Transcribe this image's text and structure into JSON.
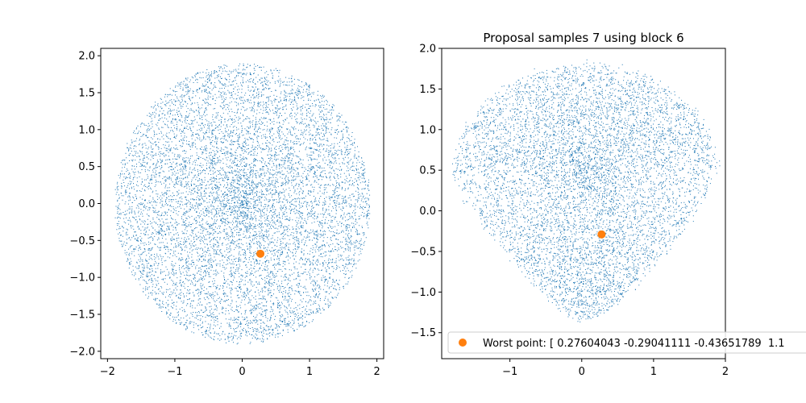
{
  "colors": {
    "samples": "#1f77b4",
    "worst_point": "#ff7f0e",
    "axes": "#000000",
    "background": "#ffffff"
  },
  "chart_data": [
    {
      "type": "scatter",
      "title": "",
      "xlabel": "",
      "ylabel": "",
      "xlim": [
        -2.1,
        2.1
      ],
      "ylim": [
        -2.1,
        2.1
      ],
      "grid": false,
      "xticks": [
        -2,
        -1,
        0,
        1,
        2
      ],
      "yticks": [
        -2.0,
        -1.5,
        -1.0,
        -0.5,
        0.0,
        0.5,
        1.0,
        1.5,
        2.0
      ],
      "xtick_labels": [
        "−2",
        "−1",
        "0",
        "1",
        "2"
      ],
      "ytick_labels": [
        "−2.0",
        "−1.5",
        "−1.0",
        "−0.5",
        "0.0",
        "0.5",
        "1.0",
        "1.5",
        "2.0"
      ],
      "series": [
        {
          "role": "samples",
          "marker": "pixel",
          "distribution": {
            "shape": "disk",
            "count": 9000,
            "center": [
              0.0,
              0.0
            ],
            "radius": 1.9
          }
        },
        {
          "role": "worst_point",
          "marker": "circle",
          "points": [
            [
              0.27,
              -0.68
            ]
          ]
        }
      ]
    },
    {
      "type": "scatter",
      "title": "Proposal samples 7 using block 6",
      "xlabel": "",
      "ylabel": "",
      "xlim": [
        -1.95,
        2.0
      ],
      "ylim": [
        -1.82,
        2.0
      ],
      "grid": false,
      "legend": "lower-right",
      "xticks": [
        -1,
        0,
        1,
        2
      ],
      "yticks": [
        -1.5,
        -1.0,
        -0.5,
        0.0,
        0.5,
        1.0,
        1.5,
        2.0
      ],
      "xtick_labels": [
        "−1",
        "0",
        "1",
        "2"
      ],
      "ytick_labels": [
        "−1.5",
        "−1.0",
        "−0.5",
        "0.0",
        "0.5",
        "1.0",
        "1.5",
        "2.0"
      ],
      "series": [
        {
          "role": "samples",
          "marker": "pixel",
          "distribution": {
            "shape": "blob",
            "count": 7500,
            "center": [
              0.05,
              0.45
            ],
            "radius_x": 1.85,
            "radius_y": 1.35,
            "bottom_taper": 0.55
          }
        },
        {
          "role": "worst_point",
          "name": "Worst point: [ 0.27604043 -0.29041111 -0.43651789  1.1",
          "marker": "circle",
          "points": [
            [
              0.27604043,
              -0.29041111
            ]
          ]
        }
      ]
    }
  ]
}
